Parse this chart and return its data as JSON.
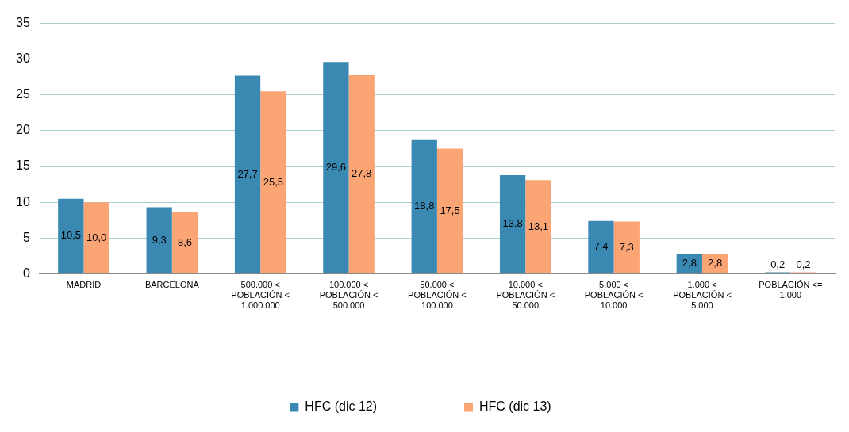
{
  "chart_data": {
    "type": "bar",
    "categories": [
      "MADRID",
      "BARCELONA",
      "500.000 < POBLACIÓN < 1.000.000",
      "100.000 < POBLACIÓN < 500.000",
      "50.000 < POBLACIÓN < 100.000",
      "10.000 < POBLACIÓN < 50.000",
      "5.000 < POBLACIÓN < 10.000",
      "1.000 < POBLACIÓN < 5.000",
      "POBLACIÓN <= 1.000"
    ],
    "series": [
      {
        "name": "HFC (dic 12)",
        "color": "#3a89b3",
        "values": [
          10.5,
          9.3,
          27.7,
          29.6,
          18.8,
          13.8,
          7.4,
          2.8,
          0.2
        ],
        "value_labels": [
          "10,5",
          "9,3",
          "27,7",
          "29,6",
          "18,8",
          "13,8",
          "7,4",
          "2,8",
          "0,2"
        ]
      },
      {
        "name": "HFC (dic 13)",
        "color": "#fba574",
        "values": [
          10.0,
          8.6,
          25.5,
          27.8,
          17.5,
          13.1,
          7.3,
          2.8,
          0.2
        ],
        "value_labels": [
          "10,0",
          "8,6",
          "25,5",
          "27,8",
          "17,5",
          "13,1",
          "7,3",
          "2,8",
          "0,2"
        ]
      }
    ],
    "ylim": [
      0,
      35
    ],
    "yticks": [
      0,
      5,
      10,
      15,
      20,
      25,
      30,
      35
    ],
    "grid": "y",
    "legend": "bottom"
  }
}
